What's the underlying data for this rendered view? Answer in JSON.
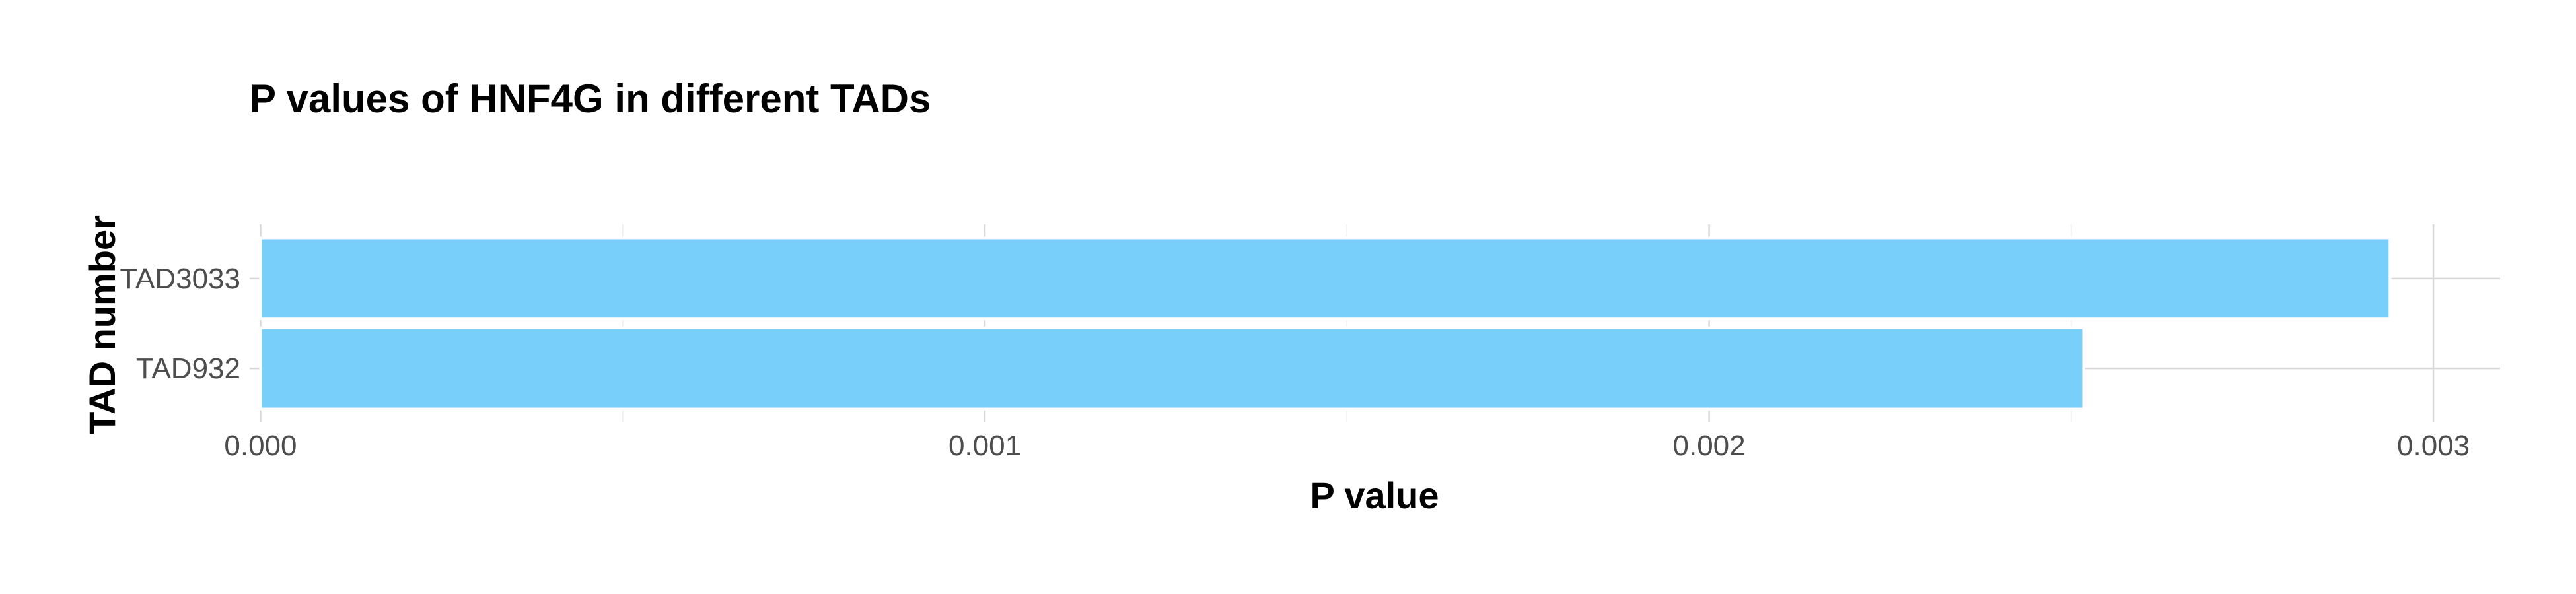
{
  "chart_data": {
    "type": "bar",
    "orientation": "horizontal",
    "title": "P values of HNF4G in different TADs",
    "xlabel": "P value",
    "ylabel": "TAD number",
    "categories": [
      "TAD3033",
      "TAD932"
    ],
    "values": [
      0.00294,
      0.002517
    ],
    "xlim": [
      -1.5e-05,
      0.003092
    ],
    "x_ticks": [
      0.0,
      0.001,
      0.002,
      0.003
    ],
    "x_tick_labels": [
      "0.000",
      "0.001",
      "0.002",
      "0.003"
    ],
    "grid": true,
    "legend": "none",
    "bar_color": "#74cefa"
  }
}
